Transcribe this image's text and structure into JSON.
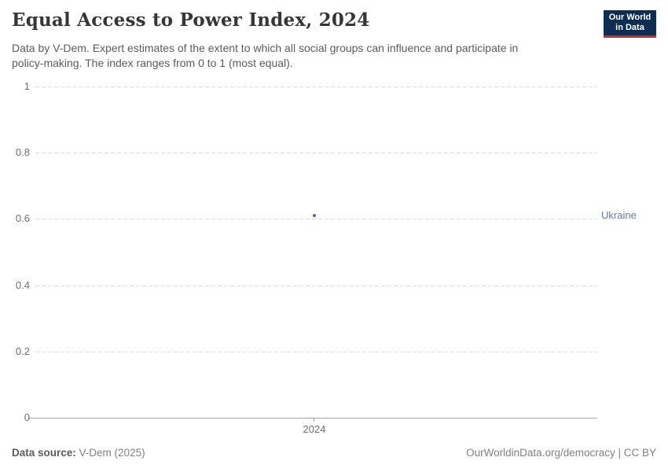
{
  "header": {
    "title": "Equal Access to Power Index, 2024",
    "subtitle_line1": "Data by V-Dem. Expert estimates of the extent to which all social groups can influence and participate in",
    "subtitle_line2": "policy-making. The index ranges from 0 to 1 (most equal)."
  },
  "logo": {
    "line1": "Our World",
    "line2": "in Data"
  },
  "footer": {
    "source_label": "Data source:",
    "source_value": "V-Dem (2025)",
    "credit": "OurWorldinData.org/democracy | CC BY"
  },
  "colors": {
    "series_blue": "#4c6a9c",
    "entity_label_blue": "#5b7cb3",
    "logo_navy": "#0d2d52",
    "logo_red": "#cc2b1e",
    "gridline_gray": "#dcdcdc",
    "axis_gray": "#a3a3a3",
    "tick_text_gray": "#6e6e6e",
    "title_gray": "#363636",
    "subtitle_gray": "#5b5b5b"
  },
  "chart_data": {
    "type": "scatter",
    "title": "Equal Access to Power Index, 2024",
    "xlabel": "",
    "ylabel": "",
    "ylim": [
      0,
      1
    ],
    "grid": "dashed-horizontal",
    "legend_position": "right-of-point",
    "y_ticks": [
      {
        "value": 0,
        "label": "0"
      },
      {
        "value": 0.2,
        "label": "0.2"
      },
      {
        "value": 0.4,
        "label": "0.4"
      },
      {
        "value": 0.6,
        "label": "0.6"
      },
      {
        "value": 0.8,
        "label": "0.8"
      },
      {
        "value": 1,
        "label": "1"
      }
    ],
    "x_ticks": [
      {
        "value": 2024,
        "label": "2024"
      }
    ],
    "series": [
      {
        "name": "Ukraine",
        "x": [
          2024
        ],
        "y": [
          0.61
        ],
        "color": "#4c6a9c",
        "label_color": "#5b7cb3"
      }
    ]
  }
}
